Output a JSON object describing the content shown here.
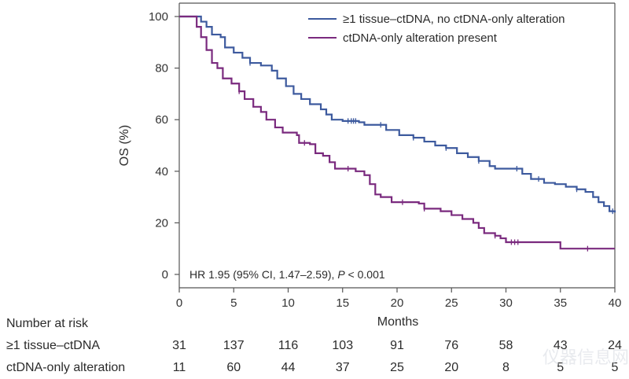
{
  "chart_data": {
    "type": "line",
    "subtype": "kaplan-meier",
    "title": "",
    "xlabel": "Months",
    "ylabel": "OS (%)",
    "xlim": [
      0,
      40
    ],
    "ylim": [
      0,
      100
    ],
    "x_ticks": [
      0,
      5,
      10,
      15,
      20,
      25,
      30,
      35,
      40
    ],
    "y_ticks": [
      0,
      20,
      40,
      60,
      80,
      100
    ],
    "grid": false,
    "legend_position": "top-right",
    "annotation": {
      "prefix": "HR 1.95 (95% CI, 1.47–2.59), ",
      "p_symbol": "P",
      "suffix": " < 0.001"
    },
    "series": [
      {
        "name": "≥1 tissue–ctDNA, no ctDNA-only alteration",
        "color": "#3d5a9e",
        "points": [
          [
            0,
            100
          ],
          [
            1.5,
            100
          ],
          [
            2,
            98
          ],
          [
            2.5,
            96
          ],
          [
            3,
            93
          ],
          [
            3.8,
            92
          ],
          [
            4.2,
            88
          ],
          [
            5,
            86
          ],
          [
            5.8,
            84
          ],
          [
            6.5,
            82
          ],
          [
            7.5,
            81
          ],
          [
            8.5,
            79
          ],
          [
            9,
            76
          ],
          [
            9.8,
            73
          ],
          [
            10.5,
            70
          ],
          [
            11.2,
            68
          ],
          [
            12,
            66
          ],
          [
            13,
            64
          ],
          [
            13.5,
            62
          ],
          [
            14,
            60
          ],
          [
            15,
            59.5
          ],
          [
            16.5,
            59
          ],
          [
            17,
            58
          ],
          [
            18.5,
            58
          ],
          [
            19,
            56
          ],
          [
            20.2,
            54
          ],
          [
            21.5,
            53
          ],
          [
            22.5,
            51.5
          ],
          [
            23.5,
            50
          ],
          [
            24.5,
            49
          ],
          [
            25.5,
            47
          ],
          [
            26.5,
            45.5
          ],
          [
            27.5,
            44
          ],
          [
            28.5,
            42
          ],
          [
            29,
            41
          ],
          [
            31,
            41
          ],
          [
            31.5,
            39
          ],
          [
            32.3,
            37
          ],
          [
            33.5,
            35.5
          ],
          [
            34.5,
            35
          ],
          [
            35.5,
            34
          ],
          [
            36.5,
            33
          ],
          [
            37.3,
            32
          ],
          [
            38,
            30
          ],
          [
            38.5,
            28
          ],
          [
            39,
            26.5
          ],
          [
            39.5,
            24.5
          ],
          [
            40,
            24
          ]
        ],
        "censor_marks_months": [
          6.5,
          15.5,
          15.8,
          16.0,
          16.2,
          18.5,
          21.5,
          24.5,
          27.5,
          31,
          33,
          36.5,
          39.8
        ]
      },
      {
        "name": "ctDNA-only alteration present",
        "color": "#7a2a7e",
        "points": [
          [
            0,
            100
          ],
          [
            1.3,
            100
          ],
          [
            1.6,
            96
          ],
          [
            2,
            92
          ],
          [
            2.5,
            87
          ],
          [
            3,
            82
          ],
          [
            3.5,
            80
          ],
          [
            4,
            76
          ],
          [
            4.8,
            74
          ],
          [
            5.5,
            71
          ],
          [
            6,
            68
          ],
          [
            6.8,
            65
          ],
          [
            7.5,
            63
          ],
          [
            8,
            60
          ],
          [
            8.8,
            57
          ],
          [
            9.5,
            55
          ],
          [
            10.8,
            54
          ],
          [
            11,
            51
          ],
          [
            12,
            50.5
          ],
          [
            12.5,
            47
          ],
          [
            13.2,
            46
          ],
          [
            13.8,
            43.5
          ],
          [
            14.3,
            41
          ],
          [
            16.2,
            40
          ],
          [
            17,
            38.5
          ],
          [
            17.5,
            35
          ],
          [
            18,
            31
          ],
          [
            18.5,
            30
          ],
          [
            19.5,
            28
          ],
          [
            22,
            27.5
          ],
          [
            22.5,
            25.5
          ],
          [
            24,
            24.5
          ],
          [
            25,
            23
          ],
          [
            26,
            21.5
          ],
          [
            27,
            20
          ],
          [
            27.5,
            18
          ],
          [
            28,
            16
          ],
          [
            29,
            15
          ],
          [
            29.5,
            14
          ],
          [
            30,
            12.5
          ],
          [
            35,
            12.5
          ],
          [
            35,
            10
          ],
          [
            40,
            10
          ]
        ],
        "censor_marks_months": [
          5.5,
          11.5,
          15.5,
          20.5,
          22.5,
          29,
          30.5,
          30.8,
          31.1,
          37.5
        ]
      }
    ],
    "risk_table": {
      "title": "Number at risk",
      "timepoints": [
        0,
        5,
        10,
        15,
        20,
        25,
        30,
        35,
        40
      ],
      "rows": [
        {
          "label": "≥1 tissue–ctDNA",
          "values": [
            31,
            137,
            116,
            103,
            91,
            76,
            58,
            43,
            24
          ]
        },
        {
          "label": "ctDNA-only alteration",
          "values": [
            11,
            60,
            44,
            37,
            25,
            20,
            8,
            5,
            5
          ]
        }
      ]
    }
  },
  "watermark": "仪器信息网"
}
